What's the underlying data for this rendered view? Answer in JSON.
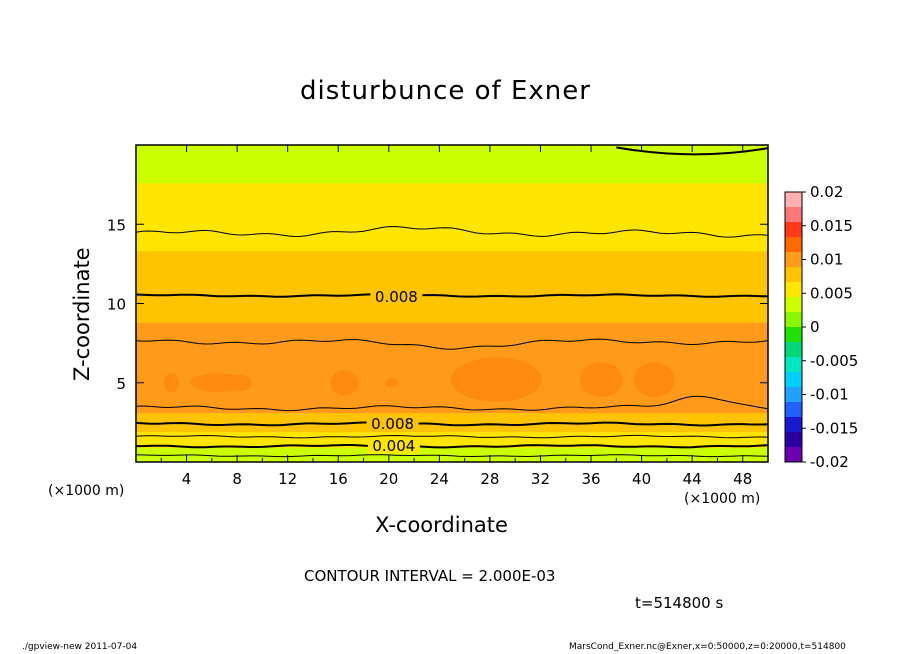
{
  "chart_data": {
    "type": "heatmap",
    "title": "disturbunce of Exner",
    "xlabel": "X-coordinate",
    "ylabel": "Z-coordinate",
    "x_unit": "(×1000 m)",
    "xlim": [
      0,
      50
    ],
    "ylim": [
      0,
      20
    ],
    "x_ticks": [
      4,
      8,
      12,
      16,
      20,
      24,
      28,
      32,
      36,
      40,
      44,
      48
    ],
    "y_ticks": [
      5,
      10,
      15
    ],
    "colorbar": {
      "ticks": [
        "0.02",
        "0.015",
        "0.01",
        "0.005",
        "0",
        "-0.005",
        "-0.01",
        "-0.015",
        "-0.02"
      ],
      "colors": [
        "#ffb0b0",
        "#ff7878",
        "#ff3a1a",
        "#ff6a00",
        "#ff9a1a",
        "#ffc400",
        "#ffe600",
        "#ccff00",
        "#8cf500",
        "#22e000",
        "#00d87a",
        "#00e8c0",
        "#00d0ff",
        "#20a0ff",
        "#2060ff",
        "#1818d0",
        "#2a00a0",
        "#6a00b0"
      ]
    },
    "profile": {
      "z": [
        0.3,
        0.9,
        1.6,
        2.3,
        3.0,
        4.0,
        5.0,
        6.0,
        7.0,
        8.0,
        9.0,
        10.0,
        11.0,
        12.0,
        13.0,
        14.0,
        15.0,
        16.0,
        17.0,
        18.0,
        19.0,
        19.8
      ],
      "value": [
        0.003,
        0.0045,
        0.006,
        0.0075,
        0.0088,
        0.0098,
        0.0103,
        0.0101,
        0.0098,
        0.0093,
        0.0088,
        0.0081,
        0.0076,
        0.0072,
        0.0068,
        0.0063,
        0.0058,
        0.0052,
        0.0047,
        0.0043,
        0.004,
        0.0037
      ]
    },
    "contour_labels": [
      {
        "text": "0.008",
        "x": 20.6,
        "z": 10.4
      },
      {
        "text": "0.008",
        "x": 20.3,
        "z": 2.4
      },
      {
        "text": "0.004",
        "x": 20.4,
        "z": 1.0
      }
    ],
    "contour_interval": "CONTOUR INTERVAL = 2.000E-03",
    "time": "t=514800 s"
  },
  "footer": {
    "left": "./gpview-new   2011-07-04",
    "right": "MarsCond_Exner.nc@Exner,x=0:50000,z=0:20000,t=514800"
  }
}
